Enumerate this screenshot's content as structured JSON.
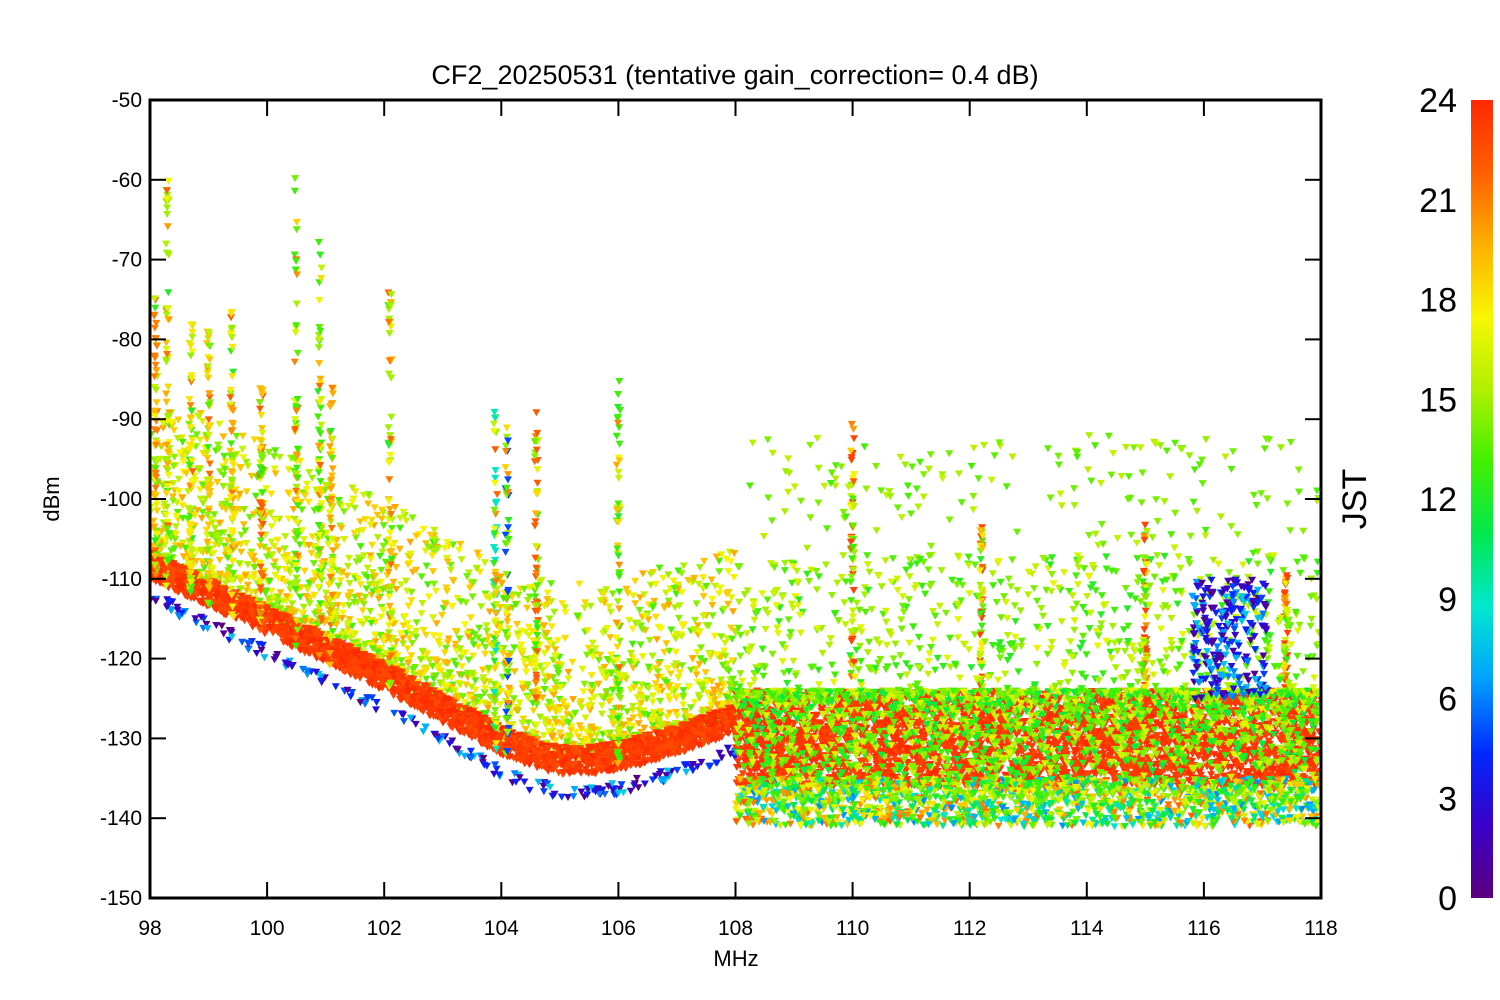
{
  "chart_data": {
    "type": "scatter",
    "title": "CF2_20250531 (tentative gain_correction=  0.4 dB)",
    "xlabel": "MHz",
    "ylabel": "dBm",
    "xlim": [
      98,
      118
    ],
    "ylim": [
      -150,
      -50
    ],
    "xticks": [
      "98",
      "100",
      "102",
      "104",
      "106",
      "108",
      "110",
      "112",
      "114",
      "116",
      "118"
    ],
    "yticks": [
      "-50",
      "-60",
      "-70",
      "-80",
      "-90",
      "-100",
      "-110",
      "-120",
      "-130",
      "-140",
      "-150"
    ],
    "grid": false,
    "marker": "triangle-down",
    "colorbar": {
      "label": "JST",
      "range": [
        0,
        24
      ],
      "ticks": [
        "24",
        "21",
        "18",
        "15",
        "12",
        "9",
        "6",
        "3",
        "0"
      ],
      "colormap": "rainbow",
      "colors": [
        "#5a0080",
        "#3a00c8",
        "#0028ff",
        "#00a0ff",
        "#00e8d0",
        "#00e850",
        "#40f000",
        "#b0f000",
        "#f8f800",
        "#ffb000",
        "#ff6000",
        "#ff2800"
      ]
    },
    "noise_floor": {
      "description_hz": "lower envelope of red points (JST ~23)",
      "x": [
        98,
        99,
        100,
        101,
        102,
        103,
        104,
        104.5,
        105,
        105.5,
        106,
        107,
        107.9
      ],
      "y": [
        -110,
        -113.5,
        -117,
        -120.5,
        -124,
        -128,
        -132,
        -133.5,
        -134.5,
        -134.5,
        -134,
        -132,
        -129.5
      ]
    },
    "band_108_118": {
      "x": [
        108,
        118
      ],
      "y_core": [
        -135,
        -124
      ],
      "jst": 23
    },
    "series": [
      {
        "freq": 98.3,
        "peak": -60,
        "jst": 15
      },
      {
        "freq": 98.1,
        "peak": -74,
        "jst": 21
      },
      {
        "freq": 98.7,
        "peak": -78,
        "jst": 18
      },
      {
        "freq": 99.0,
        "peak": -79,
        "jst": 19
      },
      {
        "freq": 99.4,
        "peak": -75,
        "jst": 18
      },
      {
        "freq": 99.9,
        "peak": -86,
        "jst": 22
      },
      {
        "freq": 100.5,
        "peak": -58,
        "jst": 13
      },
      {
        "freq": 100.9,
        "peak": -67,
        "jst": 13
      },
      {
        "freq": 101.1,
        "peak": -86,
        "jst": 20
      },
      {
        "freq": 102.1,
        "peak": -74,
        "jst": 15
      },
      {
        "freq": 103.9,
        "peak": -89,
        "jst": 9
      },
      {
        "freq": 104.1,
        "peak": -89,
        "jst": 5
      },
      {
        "freq": 104.6,
        "peak": -89,
        "jst": 22
      },
      {
        "freq": 106.0,
        "peak": -84,
        "jst": 13
      },
      {
        "freq": 110.0,
        "peak": -90,
        "jst": 23
      },
      {
        "freq": 112.2,
        "peak": -102,
        "jst": 23
      },
      {
        "freq": 115.0,
        "peak": -103,
        "jst": 23
      },
      {
        "freq": 117.4,
        "peak": -109,
        "jst": 23
      }
    ]
  }
}
